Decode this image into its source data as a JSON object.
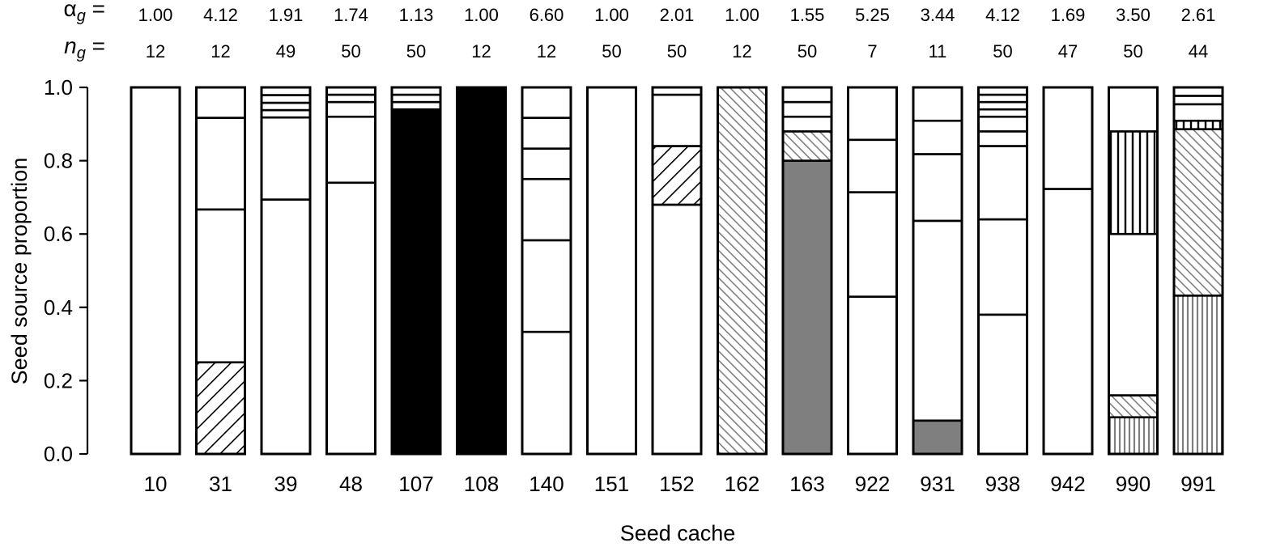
{
  "chart_data": {
    "type": "bar",
    "subtype": "stacked-proportion",
    "xlabel": "Seed cache",
    "ylabel": "Seed source proportion",
    "ylim": [
      0,
      1
    ],
    "yticks": [
      "0.0",
      "0.2",
      "0.4",
      "0.6",
      "0.8",
      "1.0"
    ],
    "grid": false,
    "legend": "none",
    "top_rows": [
      {
        "symbol": "α",
        "subscript": "g",
        "suffix": " ="
      },
      {
        "symbol": "n",
        "subscript": "g",
        "suffix": " ="
      }
    ],
    "categories": [
      "10",
      "31",
      "39",
      "48",
      "107",
      "108",
      "140",
      "151",
      "152",
      "162",
      "163",
      "922",
      "931",
      "938",
      "942",
      "990",
      "991"
    ],
    "alpha_g": [
      "1.00",
      "4.12",
      "1.91",
      "1.74",
      "1.13",
      "1.00",
      "6.60",
      "1.00",
      "2.01",
      "1.00",
      "1.55",
      "5.25",
      "3.44",
      "4.12",
      "1.69",
      "3.50",
      "2.61"
    ],
    "n_g": [
      "12",
      "12",
      "49",
      "50",
      "50",
      "12",
      "12",
      "50",
      "50",
      "12",
      "50",
      "7",
      "11",
      "50",
      "47",
      "50",
      "44"
    ],
    "fill_styles": [
      "white",
      "black",
      "gray",
      "diag-black",
      "diag-gray",
      "vlines-black",
      "vlines-gray"
    ],
    "segments": [
      [
        {
          "v": 1.0,
          "f": "white"
        }
      ],
      [
        {
          "v": 0.25,
          "f": "diag-black"
        },
        {
          "v": 0.417,
          "f": "white"
        },
        {
          "v": 0.25,
          "f": "white"
        },
        {
          "v": 0.083,
          "f": "white"
        }
      ],
      [
        {
          "v": 0.694,
          "f": "white"
        },
        {
          "v": 0.224,
          "f": "white"
        },
        {
          "v": 0.02,
          "f": "white"
        },
        {
          "v": 0.02,
          "f": "white"
        },
        {
          "v": 0.021,
          "f": "white"
        },
        {
          "v": 0.021,
          "f": "white"
        }
      ],
      [
        {
          "v": 0.74,
          "f": "white"
        },
        {
          "v": 0.18,
          "f": "white"
        },
        {
          "v": 0.04,
          "f": "white"
        },
        {
          "v": 0.02,
          "f": "white"
        },
        {
          "v": 0.02,
          "f": "white"
        }
      ],
      [
        {
          "v": 0.94,
          "f": "black"
        },
        {
          "v": 0.02,
          "f": "white"
        },
        {
          "v": 0.02,
          "f": "white"
        },
        {
          "v": 0.02,
          "f": "white"
        }
      ],
      [
        {
          "v": 1.0,
          "f": "black"
        }
      ],
      [
        {
          "v": 0.333,
          "f": "white"
        },
        {
          "v": 0.25,
          "f": "white"
        },
        {
          "v": 0.167,
          "f": "white"
        },
        {
          "v": 0.083,
          "f": "white"
        },
        {
          "v": 0.084,
          "f": "white"
        },
        {
          "v": 0.083,
          "f": "white"
        }
      ],
      [
        {
          "v": 1.0,
          "f": "white"
        }
      ],
      [
        {
          "v": 0.68,
          "f": "white"
        },
        {
          "v": 0.16,
          "f": "diag-black"
        },
        {
          "v": 0.14,
          "f": "white"
        },
        {
          "v": 0.02,
          "f": "white"
        }
      ],
      [
        {
          "v": 1.0,
          "f": "diag-gray"
        }
      ],
      [
        {
          "v": 0.8,
          "f": "gray"
        },
        {
          "v": 0.08,
          "f": "diag-gray"
        },
        {
          "v": 0.04,
          "f": "white"
        },
        {
          "v": 0.04,
          "f": "white"
        },
        {
          "v": 0.04,
          "f": "white"
        }
      ],
      [
        {
          "v": 0.429,
          "f": "white"
        },
        {
          "v": 0.285,
          "f": "white"
        },
        {
          "v": 0.143,
          "f": "white"
        },
        {
          "v": 0.143,
          "f": "white"
        }
      ],
      [
        {
          "v": 0.091,
          "f": "gray"
        },
        {
          "v": 0.545,
          "f": "white"
        },
        {
          "v": 0.182,
          "f": "white"
        },
        {
          "v": 0.091,
          "f": "white"
        },
        {
          "v": 0.091,
          "f": "white"
        }
      ],
      [
        {
          "v": 0.38,
          "f": "white"
        },
        {
          "v": 0.26,
          "f": "white"
        },
        {
          "v": 0.2,
          "f": "white"
        },
        {
          "v": 0.04,
          "f": "white"
        },
        {
          "v": 0.04,
          "f": "white"
        },
        {
          "v": 0.02,
          "f": "white"
        },
        {
          "v": 0.02,
          "f": "white"
        },
        {
          "v": 0.02,
          "f": "white"
        },
        {
          "v": 0.02,
          "f": "white"
        }
      ],
      [
        {
          "v": 0.723,
          "f": "white"
        },
        {
          "v": 0.277,
          "f": "white"
        }
      ],
      [
        {
          "v": 0.1,
          "f": "vlines-gray"
        },
        {
          "v": 0.06,
          "f": "diag-gray"
        },
        {
          "v": 0.44,
          "f": "white"
        },
        {
          "v": 0.28,
          "f": "vlines-black"
        },
        {
          "v": 0.12,
          "f": "white"
        }
      ],
      [
        {
          "v": 0.432,
          "f": "vlines-gray"
        },
        {
          "v": 0.454,
          "f": "diag-gray"
        },
        {
          "v": 0.023,
          "f": "vlines-black"
        },
        {
          "v": 0.045,
          "f": "white"
        },
        {
          "v": 0.023,
          "f": "white"
        },
        {
          "v": 0.023,
          "f": "white"
        }
      ]
    ]
  }
}
